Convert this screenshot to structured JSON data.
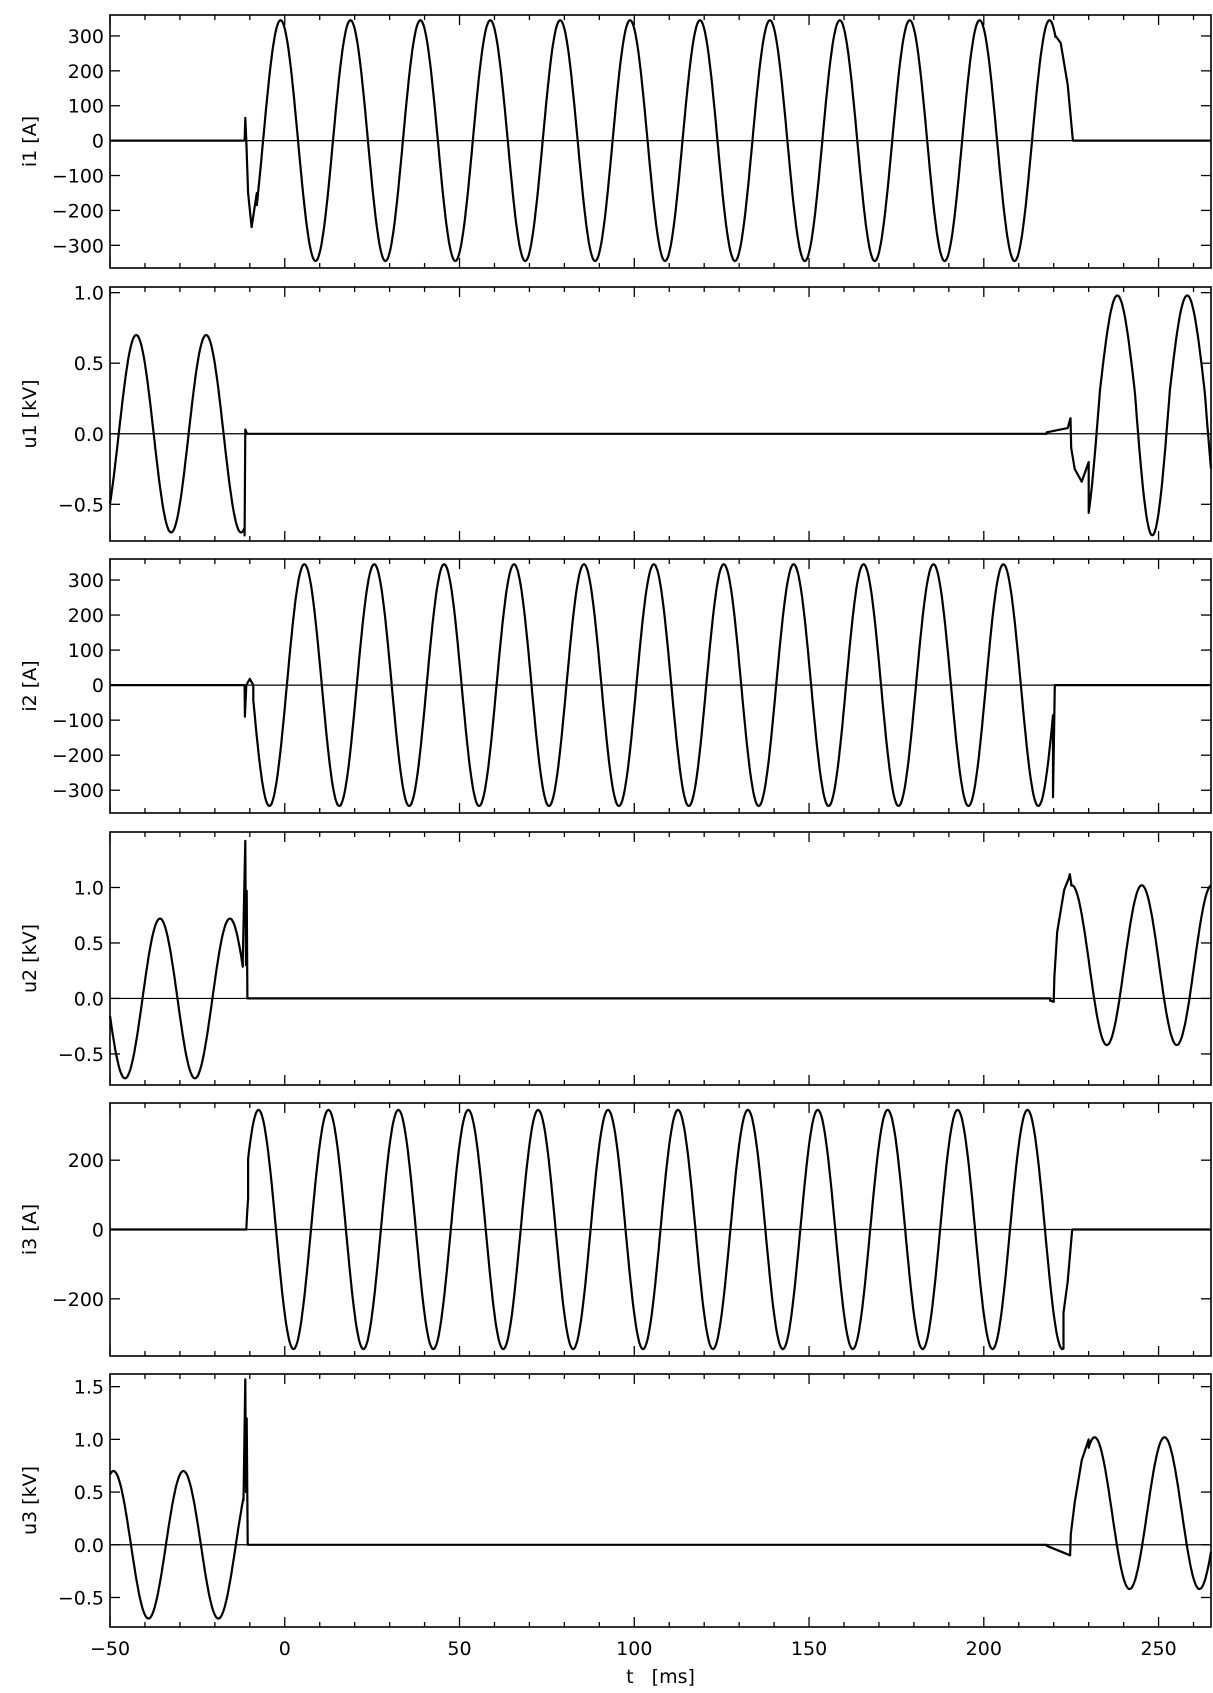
{
  "chart_data": {
    "type": "line",
    "x_label": "t   [ms]",
    "x_range": [
      -50,
      265
    ],
    "x_ticks": [
      -50,
      0,
      50,
      100,
      150,
      200,
      250
    ],
    "panels": [
      {
        "name": "i1",
        "y_label": "i1 [A]",
        "y_range": [
          -365,
          360
        ],
        "y_ticks": [
          300,
          200,
          100,
          0,
          -100,
          -200,
          -300
        ],
        "y_tick_labels": [
          "300",
          "200",
          "100",
          "0",
          "−100",
          "−200",
          "−300"
        ],
        "segments": [
          {
            "kind": "flat",
            "from": -50,
            "to": -11.5,
            "value": 0
          },
          {
            "kind": "points",
            "pts": [
              [
                -11.5,
                0
              ],
              [
                -11.3,
                65
              ],
              [
                -11.0,
                0
              ],
              [
                -10.5,
                -150
              ],
              [
                -9.5,
                -248
              ],
              [
                -8,
                -150
              ]
            ]
          },
          {
            "kind": "sine",
            "from": -8,
            "to": 220.5,
            "amp": 345,
            "period": 20,
            "phase_peak": -1.2
          },
          {
            "kind": "points",
            "pts": [
              [
                220.5,
                300
              ],
              [
                222,
                280
              ],
              [
                224,
                160
              ],
              [
                225.5,
                0
              ]
            ]
          },
          {
            "kind": "flat",
            "from": 225.5,
            "to": 265,
            "value": 0
          }
        ]
      },
      {
        "name": "u1",
        "y_label": "u1 [kV]",
        "y_range": [
          -0.76,
          1.04
        ],
        "y_ticks": [
          1.0,
          0.5,
          0.0,
          -0.5
        ],
        "y_tick_labels": [
          "1.0",
          "0.5",
          "0.0",
          "−0.5"
        ],
        "segments": [
          {
            "kind": "sine",
            "from": -50,
            "to": -11.5,
            "amp": 0.7,
            "period": 20,
            "phase_peak": -42.5
          },
          {
            "kind": "points",
            "pts": [
              [
                -11.5,
                -0.72
              ],
              [
                -11.3,
                0.03
              ],
              [
                -10.8,
                0.0
              ]
            ]
          },
          {
            "kind": "flat",
            "from": -10.8,
            "to": 218,
            "value": 0.0
          },
          {
            "kind": "points",
            "pts": [
              [
                218,
                0.01
              ],
              [
                224,
                0.04
              ],
              [
                224.8,
                0.11
              ],
              [
                225,
                -0.1
              ],
              [
                226,
                -0.25
              ],
              [
                228,
                -0.34
              ],
              [
                230,
                -0.2
              ]
            ]
          },
          {
            "kind": "sine",
            "from": 230,
            "to": 265,
            "amp": 0.98,
            "period": 20,
            "phase_peak": 238.2,
            "offset": 0.3,
            "amp_neg": 0.72
          }
        ]
      },
      {
        "name": "i2",
        "y_label": "i2 [A]",
        "y_range": [
          -365,
          360
        ],
        "y_ticks": [
          300,
          200,
          100,
          0,
          -100,
          -200,
          -300
        ],
        "y_tick_labels": [
          "300",
          "200",
          "100",
          "0",
          "−100",
          "−200",
          "−300"
        ],
        "segments": [
          {
            "kind": "flat",
            "from": -50,
            "to": -11.5,
            "value": 0
          },
          {
            "kind": "points",
            "pts": [
              [
                -11.5,
                0
              ],
              [
                -11.4,
                -90
              ],
              [
                -11.0,
                0
              ],
              [
                -10.0,
                18
              ],
              [
                -9.0,
                0
              ]
            ]
          },
          {
            "kind": "sine",
            "from": -9,
            "to": 219.8,
            "amp": 345,
            "period": 20,
            "phase_peak": 5.6
          },
          {
            "kind": "points",
            "pts": [
              [
                219.8,
                -320
              ],
              [
                220.3,
                0
              ]
            ]
          },
          {
            "kind": "flat",
            "from": 220.3,
            "to": 265,
            "value": 0
          }
        ]
      },
      {
        "name": "u2",
        "y_label": "u2 [kV]",
        "y_range": [
          -0.78,
          1.5
        ],
        "y_ticks": [
          1.0,
          0.5,
          0.0,
          -0.5
        ],
        "y_tick_labels": [
          "1.0",
          "0.5",
          "0.0",
          "−0.5"
        ],
        "segments": [
          {
            "kind": "sine",
            "from": -50,
            "to": -12,
            "amp": 0.72,
            "period": 20,
            "phase_peak": -35.7
          },
          {
            "kind": "points",
            "pts": [
              [
                -12,
                0.35
              ],
              [
                -11.3,
                1.42
              ],
              [
                -11.1,
                0.3
              ],
              [
                -10.9,
                0.97
              ],
              [
                -10.7,
                0.0
              ]
            ]
          },
          {
            "kind": "flat",
            "from": -10.7,
            "to": 219,
            "value": 0.0
          },
          {
            "kind": "points",
            "pts": [
              [
                219,
                -0.02
              ],
              [
                220,
                -0.03
              ],
              [
                220.2,
                0.2
              ],
              [
                221,
                0.6
              ],
              [
                223,
                0.98
              ],
              [
                224.3,
                1.08
              ],
              [
                224.6,
                1.12
              ],
              [
                225,
                1.04
              ]
            ]
          },
          {
            "kind": "sine",
            "from": 225,
            "to": 265,
            "amp": 0.72,
            "period": 20,
            "phase_peak": 225.2,
            "offset": 0.3
          }
        ]
      },
      {
        "name": "i3",
        "y_label": "i3 [A]",
        "y_range": [
          -365,
          365
        ],
        "y_ticks": [
          200,
          0,
          -200
        ],
        "y_tick_labels": [
          "200",
          "0",
          "−200"
        ],
        "segments": [
          {
            "kind": "flat",
            "from": -50,
            "to": -11,
            "value": 0
          },
          {
            "kind": "points",
            "pts": [
              [
                -11,
                0
              ],
              [
                -10.8,
                40
              ],
              [
                -10.5,
                90
              ]
            ]
          },
          {
            "kind": "sine",
            "from": -10.5,
            "to": 222.8,
            "amp": 345,
            "period": 20,
            "phase_peak": -7.5
          },
          {
            "kind": "points",
            "pts": [
              [
                222.8,
                -240
              ],
              [
                224,
                -150
              ],
              [
                225.3,
                0
              ]
            ]
          },
          {
            "kind": "flat",
            "from": 225.3,
            "to": 265,
            "value": 0
          }
        ]
      },
      {
        "name": "u3",
        "y_label": "u3 [kV]",
        "y_range": [
          -0.78,
          1.62
        ],
        "y_ticks": [
          1.5,
          1.0,
          0.5,
          0.0,
          -0.5
        ],
        "y_tick_labels": [
          "1.5",
          "1.0",
          "0.5",
          "0.0",
          "−0.5"
        ],
        "segments": [
          {
            "kind": "sine",
            "from": -50,
            "to": -11.8,
            "amp": 0.7,
            "period": 20,
            "phase_peak": -49
          },
          {
            "kind": "points",
            "pts": [
              [
                -11.8,
                0.42
              ],
              [
                -11.3,
                1.57
              ],
              [
                -11.1,
                0.5
              ],
              [
                -10.9,
                1.2
              ],
              [
                -10.6,
                0.01
              ]
            ]
          },
          {
            "kind": "flat",
            "from": -10.6,
            "to": 218,
            "value": 0.0
          },
          {
            "kind": "points",
            "pts": [
              [
                218,
                -0.01
              ],
              [
                224.7,
                -0.1
              ],
              [
                224.9,
                0.1
              ],
              [
                226,
                0.4
              ],
              [
                228,
                0.8
              ],
              [
                230,
                1.0
              ]
            ]
          },
          {
            "kind": "sine",
            "from": 230,
            "to": 265,
            "amp": 0.72,
            "period": 20,
            "phase_peak": 231.7,
            "offset": 0.3
          }
        ]
      }
    ]
  }
}
